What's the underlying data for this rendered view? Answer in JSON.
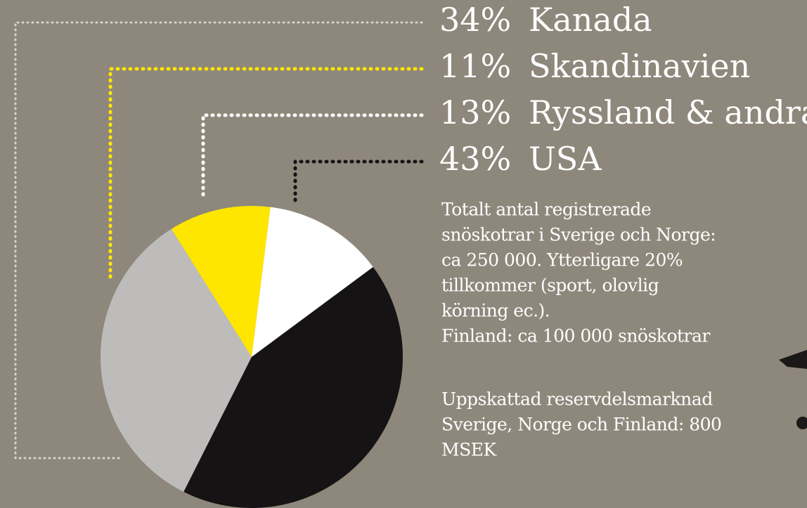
{
  "chart_data": {
    "type": "pie",
    "categories": [
      "Kanada",
      "Skandinavien",
      "Ryssland & andra",
      "USA"
    ],
    "values": [
      34,
      11,
      13,
      43
    ],
    "value_labels": [
      "34%",
      "11%",
      "13%",
      "43%"
    ],
    "colors": [
      "#bdbcbb",
      "#ffe600",
      "#ffffff",
      "#151314"
    ],
    "notes": [
      [
        "Totalt antal registrerade",
        "snöskotrar i Sverige och Norge:",
        "ca 250 000. Ytterligare 20%",
        "tillkommer (sport, olovlig",
        "körning ec.).",
        "Finland: ca 100 000 snöskotrar"
      ],
      [
        "Uppskattad reservdelsmarknad",
        "Sverige, Norge och Finland: 800",
        "MSEK"
      ]
    ]
  }
}
